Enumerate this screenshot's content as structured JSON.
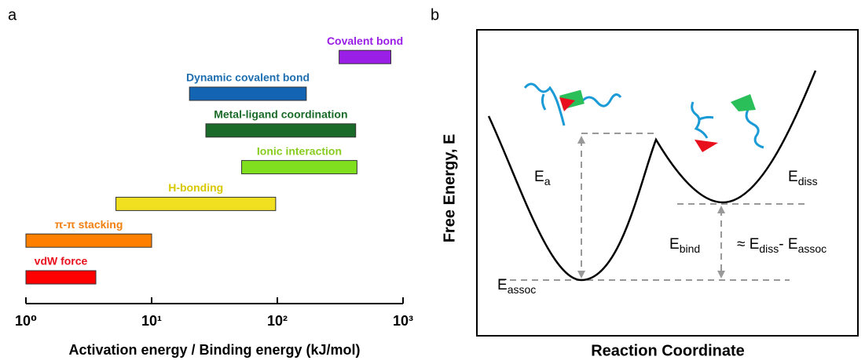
{
  "chart_data": {
    "type": "floating-bar",
    "panel_label": "a",
    "xlabel": "Activation energy / Binding energy (kJ/mol)",
    "log_x": true,
    "xlim": [
      1,
      1000
    ],
    "xticks": [
      {
        "value": 1,
        "label": "10⁰"
      },
      {
        "value": 10,
        "label": "10¹"
      },
      {
        "value": 100,
        "label": "10²"
      },
      {
        "value": 1000,
        "label": "10³"
      }
    ],
    "series": [
      {
        "name": "vdW force",
        "color": "#ff0000",
        "label_color": "#e8101c",
        "values": [
          1,
          3.6
        ]
      },
      {
        "name": "π-π stacking",
        "color": "#ff8000",
        "label_color": "#f08010",
        "values": [
          1,
          10
        ]
      },
      {
        "name": "H-bonding",
        "color": "#f0e020",
        "label_color": "#d8c800",
        "values": [
          5.2,
          97
        ]
      },
      {
        "name": "Ionic interaction",
        "color": "#80e020",
        "label_color": "#88cc20",
        "values": [
          52,
          430
        ]
      },
      {
        "name": "Metal-ligand coordination",
        "color": "#1a6b2a",
        "label_color": "#1a6b2a",
        "values": [
          27,
          420
        ]
      },
      {
        "name": "Dynamic covalent bond",
        "color": "#1464b4",
        "label_color": "#1f6fb0",
        "values": [
          20,
          170
        ]
      },
      {
        "name": "Covalent bond",
        "color": "#9a1ee6",
        "label_color": "#9a1ee6",
        "values": [
          310,
          800
        ]
      }
    ]
  },
  "diagram": {
    "panel_label": "b",
    "y_label": "Free Energy, E",
    "x_label": "Reaction Coordinate",
    "labels": [
      {
        "parts": [
          {
            "text": "E"
          },
          {
            "sub": "a"
          }
        ]
      },
      {
        "parts": [
          {
            "text": "E"
          },
          {
            "sub": "diss"
          }
        ]
      },
      {
        "parts": [
          {
            "text": "E"
          },
          {
            "sub": "bind"
          }
        ]
      },
      {
        "parts": [
          {
            "text": "≈ E"
          },
          {
            "sub": "diss"
          },
          {
            "text": "- E"
          },
          {
            "sub": "assoc"
          }
        ]
      },
      {
        "parts": [
          {
            "text": "E"
          },
          {
            "sub": "assoc"
          }
        ]
      }
    ]
  }
}
